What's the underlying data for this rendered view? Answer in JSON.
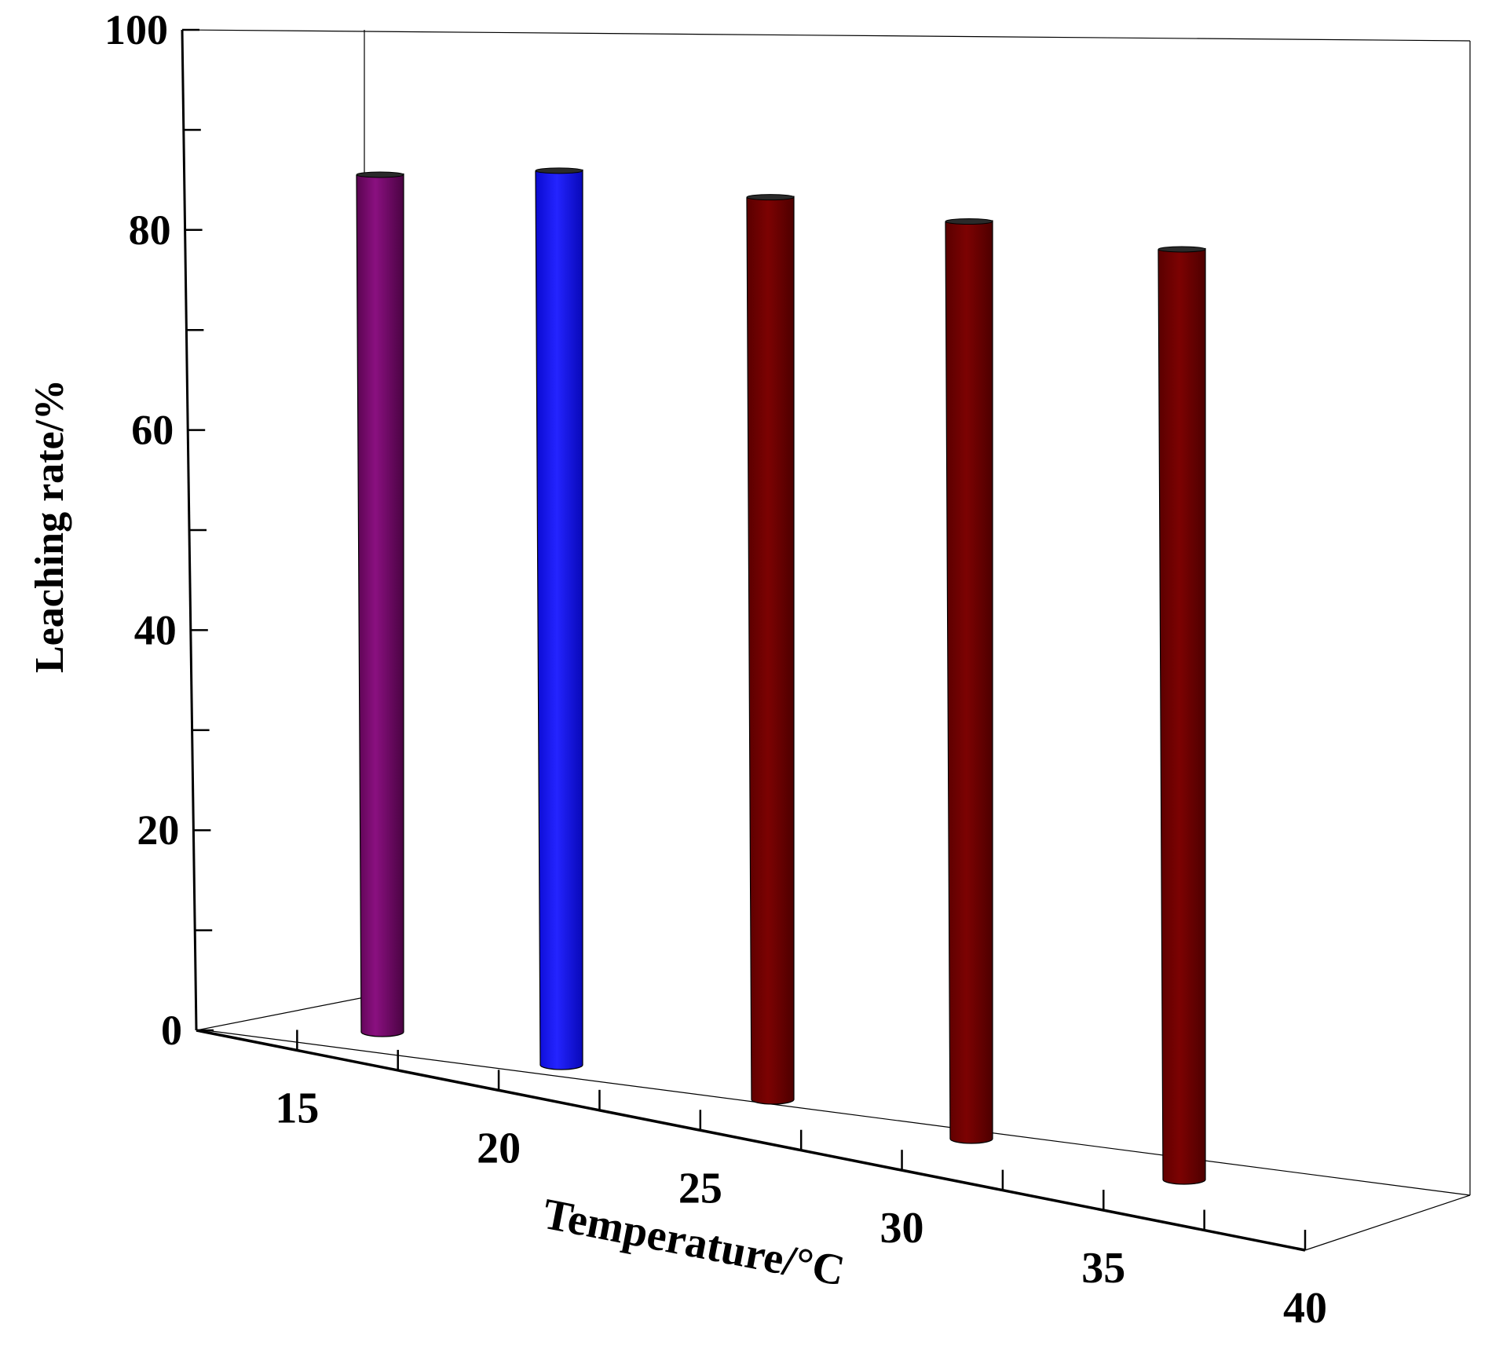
{
  "chart_data": {
    "type": "bar",
    "title": "",
    "xlabel": "Temperature/°C",
    "ylabel": "Leaching rate/%",
    "x_ticks": [
      "15",
      "20",
      "25",
      "30",
      "35",
      "40"
    ],
    "y_ticks": [
      "0",
      "20",
      "40",
      "60",
      "80",
      "100"
    ],
    "ylim": [
      0,
      100
    ],
    "categories": [
      "15",
      "20",
      "25",
      "30",
      "35"
    ],
    "values": [
      85.6,
      89.3,
      90.1,
      91.6,
      92.9
    ],
    "colors": [
      "#7a0a6e",
      "#1010f5",
      "#720000",
      "#720000",
      "#720000"
    ],
    "grid": false,
    "legend": "none"
  }
}
